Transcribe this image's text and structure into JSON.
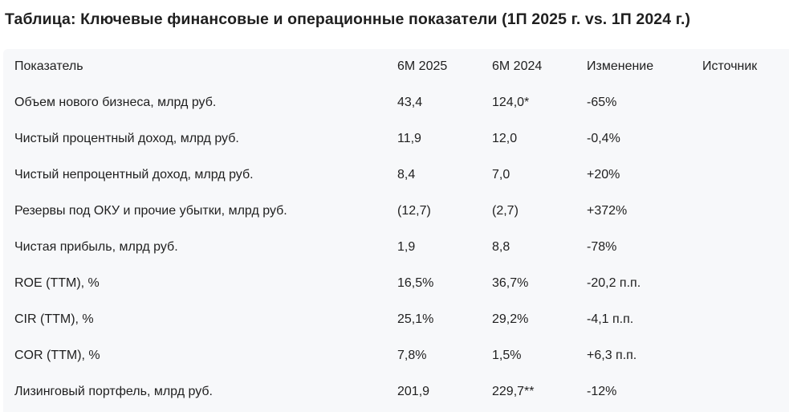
{
  "title": "Таблица: Ключевые финансовые и операционные показатели (1П 2025 г. vs. 1П 2024 г.)",
  "table": {
    "headers": [
      "Показатель",
      "6М 2025",
      "6М 2024",
      "Изменение",
      "Источник"
    ],
    "rows": [
      [
        "Объем нового бизнеса, млрд руб.",
        "43,4",
        "124,0*",
        "-65%",
        ""
      ],
      [
        "Чистый процентный доход, млрд руб.",
        "11,9",
        "12,0",
        "-0,4%",
        ""
      ],
      [
        "Чистый непроцентный доход, млрд руб.",
        "8,4",
        "7,0",
        "+20%",
        ""
      ],
      [
        "Резервы под ОКУ и прочие убытки, млрд руб.",
        "(12,7)",
        "(2,7)",
        "+372%",
        ""
      ],
      [
        "Чистая прибыль, млрд руб.",
        "1,9",
        "8,8",
        "-78%",
        ""
      ],
      [
        "ROE (TTM), %",
        "16,5%",
        "36,7%",
        "-20,2 п.п.",
        ""
      ],
      [
        "CIR (TTM), %",
        "25,1%",
        "29,2%",
        "-4,1 п.п.",
        ""
      ],
      [
        "COR (TTM), %",
        "7,8%",
        "1,5%",
        "+6,3 п.п.",
        ""
      ],
      [
        "Лизинговый портфель, млрд руб.",
        "201,9",
        "229,7**",
        "-12%",
        ""
      ]
    ]
  }
}
